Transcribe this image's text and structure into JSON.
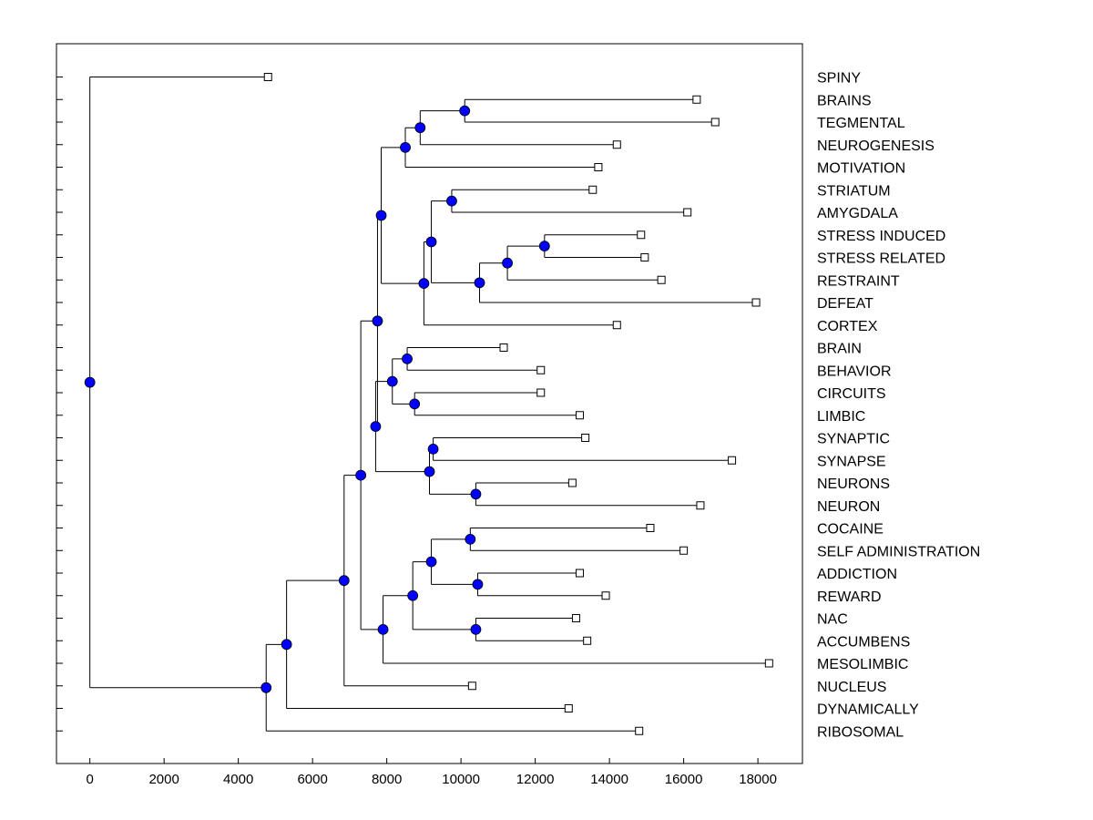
{
  "chart_data": {
    "type": "dendrogram",
    "title": "",
    "xlabel": "",
    "ylabel": "",
    "xlim": [
      -900,
      19200
    ],
    "xticks": [
      0,
      2000,
      4000,
      6000,
      8000,
      10000,
      12000,
      14000,
      16000,
      18000
    ],
    "tick_labels": [
      "0",
      "2000",
      "4000",
      "6000",
      "8000",
      "10000",
      "12000",
      "14000",
      "16000",
      "18000"
    ],
    "node_color": "#0000ff",
    "leaves": [
      {
        "label": "SPINY",
        "value": 4800
      },
      {
        "label": "BRAINS",
        "value": 16350
      },
      {
        "label": "TEGMENTAL",
        "value": 16850
      },
      {
        "label": "NEUROGENESIS",
        "value": 14200
      },
      {
        "label": "MOTIVATION",
        "value": 13700
      },
      {
        "label": "STRIATUM",
        "value": 13550
      },
      {
        "label": "AMYGDALA",
        "value": 16100
      },
      {
        "label": "STRESS INDUCED",
        "value": 14850
      },
      {
        "label": "STRESS RELATED",
        "value": 14950
      },
      {
        "label": "RESTRAINT",
        "value": 15400
      },
      {
        "label": "DEFEAT",
        "value": 17950
      },
      {
        "label": "CORTEX",
        "value": 14200
      },
      {
        "label": "BRAIN",
        "value": 11150
      },
      {
        "label": "BEHAVIOR",
        "value": 12150
      },
      {
        "label": "CIRCUITS",
        "value": 12150
      },
      {
        "label": "LIMBIC",
        "value": 13200
      },
      {
        "label": "SYNAPTIC",
        "value": 13350
      },
      {
        "label": "SYNAPSE",
        "value": 17300
      },
      {
        "label": "NEURONS",
        "value": 13000
      },
      {
        "label": "NEURON",
        "value": 16450
      },
      {
        "label": "COCAINE",
        "value": 15100
      },
      {
        "label": "SELF ADMINISTRATION",
        "value": 16000
      },
      {
        "label": "ADDICTION",
        "value": 13200
      },
      {
        "label": "REWARD",
        "value": 13900
      },
      {
        "label": "NAC",
        "value": 13100
      },
      {
        "label": "ACCUMBENS",
        "value": 13400
      },
      {
        "label": "MESOLIMBIC",
        "value": 18300
      },
      {
        "label": "NUCLEUS",
        "value": 10300
      },
      {
        "label": "DYNAMICALLY",
        "value": 12900
      },
      {
        "label": "RIBOSOMAL",
        "value": 14800
      }
    ],
    "merges": [
      {
        "id": "m1",
        "value": 10100,
        "children": [
          "BRAINS",
          "TEGMENTAL"
        ]
      },
      {
        "id": "m2",
        "value": 8900,
        "children": [
          "m1",
          "NEUROGENESIS"
        ]
      },
      {
        "id": "m3",
        "value": 8500,
        "children": [
          "m2",
          "MOTIVATION"
        ]
      },
      {
        "id": "m4",
        "value": 9750,
        "children": [
          "STRIATUM",
          "AMYGDALA"
        ]
      },
      {
        "id": "m5",
        "value": 12250,
        "children": [
          "STRESS INDUCED",
          "STRESS RELATED"
        ]
      },
      {
        "id": "m6",
        "value": 11250,
        "children": [
          "m5",
          "RESTRAINT"
        ]
      },
      {
        "id": "m7",
        "value": 10500,
        "children": [
          "m6",
          "DEFEAT"
        ]
      },
      {
        "id": "m8",
        "value": 9200,
        "children": [
          "m4",
          "m7"
        ]
      },
      {
        "id": "m9",
        "value": 9000,
        "children": [
          "m8",
          "CORTEX"
        ]
      },
      {
        "id": "m10",
        "value": 7850,
        "children": [
          "m3",
          "m9"
        ]
      },
      {
        "id": "m11",
        "value": 8550,
        "children": [
          "BRAIN",
          "BEHAVIOR"
        ]
      },
      {
        "id": "m12",
        "value": 8750,
        "children": [
          "CIRCUITS",
          "LIMBIC"
        ]
      },
      {
        "id": "m13",
        "value": 8150,
        "children": [
          "m11",
          "m12"
        ]
      },
      {
        "id": "m14",
        "value": 9250,
        "children": [
          "SYNAPTIC",
          "SYNAPSE"
        ]
      },
      {
        "id": "m15",
        "value": 10400,
        "children": [
          "NEURONS",
          "NEURON"
        ]
      },
      {
        "id": "m16",
        "value": 9150,
        "children": [
          "m14",
          "m15"
        ]
      },
      {
        "id": "m17",
        "value": 7700,
        "children": [
          "m13",
          "m16"
        ]
      },
      {
        "id": "m18",
        "value": 7750,
        "children": [
          "m10",
          "m17"
        ]
      },
      {
        "id": "m19",
        "value": 10250,
        "children": [
          "COCAINE",
          "SELF ADMINISTRATION"
        ]
      },
      {
        "id": "m20",
        "value": 10450,
        "children": [
          "ADDICTION",
          "REWARD"
        ]
      },
      {
        "id": "m21",
        "value": 9200,
        "children": [
          "m19",
          "m20"
        ]
      },
      {
        "id": "m22",
        "value": 10400,
        "children": [
          "NAC",
          "ACCUMBENS"
        ]
      },
      {
        "id": "m23",
        "value": 8700,
        "children": [
          "m21",
          "m22"
        ]
      },
      {
        "id": "m24",
        "value": 7900,
        "children": [
          "m23",
          "MESOLIMBIC"
        ]
      },
      {
        "id": "m25",
        "value": 7300,
        "children": [
          "m18",
          "m24"
        ]
      },
      {
        "id": "m26",
        "value": 6850,
        "children": [
          "m25",
          "NUCLEUS"
        ]
      },
      {
        "id": "m27",
        "value": 5300,
        "children": [
          "m26",
          "DYNAMICALLY"
        ]
      },
      {
        "id": "m28",
        "value": 4750,
        "children": [
          "m27",
          "RIBOSOMAL"
        ]
      },
      {
        "id": "m29",
        "value": 0,
        "children": [
          "SPINY",
          "m28"
        ]
      }
    ],
    "root": "m29"
  }
}
